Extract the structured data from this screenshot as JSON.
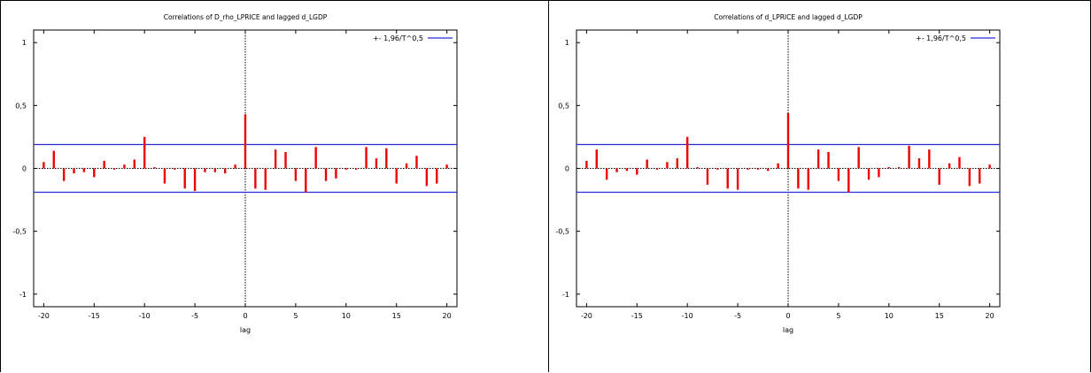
{
  "colors": {
    "bar": "#ee0000",
    "band": "#2a2ad6",
    "axis": "#000000"
  },
  "chart_data": [
    {
      "type": "bar",
      "title": "Correlations of D_rho_LPRICE and lagged d_LGDP",
      "xlabel": "lag",
      "ylabel": "",
      "xlim": [
        -21,
        21
      ],
      "ylim": [
        -1.1,
        1.1
      ],
      "xticks": [
        "-20",
        "-15",
        "-10",
        "-5",
        "0",
        "5",
        "10",
        "15",
        "20"
      ],
      "yticks": [
        "-1",
        "-0,5",
        "0",
        "0,5",
        "1"
      ],
      "legend": "+- 1,96/T^0,5",
      "legend_position": "top-right",
      "band": 0.19,
      "series": [
        {
          "x": [
            -20,
            -19,
            -18,
            -17,
            -16,
            -15,
            -14,
            -13,
            -12,
            -11,
            -10,
            -9,
            -8,
            -7,
            -6,
            -5,
            -4,
            -3,
            -2,
            -1,
            0,
            1,
            2,
            3,
            4,
            5,
            6,
            7,
            8,
            9,
            10,
            11,
            12,
            13,
            14,
            15,
            16,
            17,
            18,
            19,
            20
          ],
          "values": [
            0.05,
            0.14,
            -0.1,
            -0.04,
            -0.03,
            -0.07,
            0.06,
            -0.01,
            0.03,
            0.07,
            0.25,
            0.01,
            -0.12,
            -0.01,
            -0.16,
            -0.18,
            -0.03,
            -0.03,
            -0.04,
            0.03,
            0.43,
            -0.16,
            -0.17,
            0.15,
            0.13,
            -0.1,
            -0.19,
            0.17,
            -0.1,
            -0.08,
            -0.01,
            -0.01,
            0.17,
            0.08,
            0.16,
            -0.12,
            0.04,
            0.1,
            -0.14,
            -0.12,
            0.03
          ]
        }
      ]
    },
    {
      "type": "bar",
      "title": "Correlations of d_LPRICE and lagged d_LGDP",
      "xlabel": "lag",
      "ylabel": "",
      "xlim": [
        -21,
        21
      ],
      "ylim": [
        -1.1,
        1.1
      ],
      "xticks": [
        "-20",
        "-15",
        "-10",
        "-5",
        "0",
        "5",
        "10",
        "15",
        "20"
      ],
      "yticks": [
        "-1",
        "-0,5",
        "0",
        "0,5",
        "1"
      ],
      "legend": "+- 1,96/T^0,5",
      "legend_position": "top-right",
      "band": 0.19,
      "series": [
        {
          "x": [
            -20,
            -19,
            -18,
            -17,
            -16,
            -15,
            -14,
            -13,
            -12,
            -11,
            -10,
            -9,
            -8,
            -7,
            -6,
            -5,
            -4,
            -3,
            -2,
            -1,
            0,
            1,
            2,
            3,
            4,
            5,
            6,
            7,
            8,
            9,
            10,
            11,
            12,
            13,
            14,
            15,
            16,
            17,
            18,
            19,
            20
          ],
          "values": [
            0.06,
            0.15,
            -0.09,
            -0.03,
            -0.02,
            -0.05,
            0.07,
            -0.01,
            0.05,
            0.08,
            0.25,
            0.01,
            -0.13,
            -0.01,
            -0.16,
            -0.17,
            -0.01,
            -0.01,
            -0.02,
            0.04,
            0.44,
            -0.16,
            -0.17,
            0.15,
            0.13,
            -0.1,
            -0.19,
            0.17,
            -0.09,
            -0.07,
            0.01,
            0.01,
            0.18,
            0.08,
            0.15,
            -0.13,
            0.04,
            0.09,
            -0.14,
            -0.12,
            0.03
          ]
        }
      ]
    }
  ]
}
